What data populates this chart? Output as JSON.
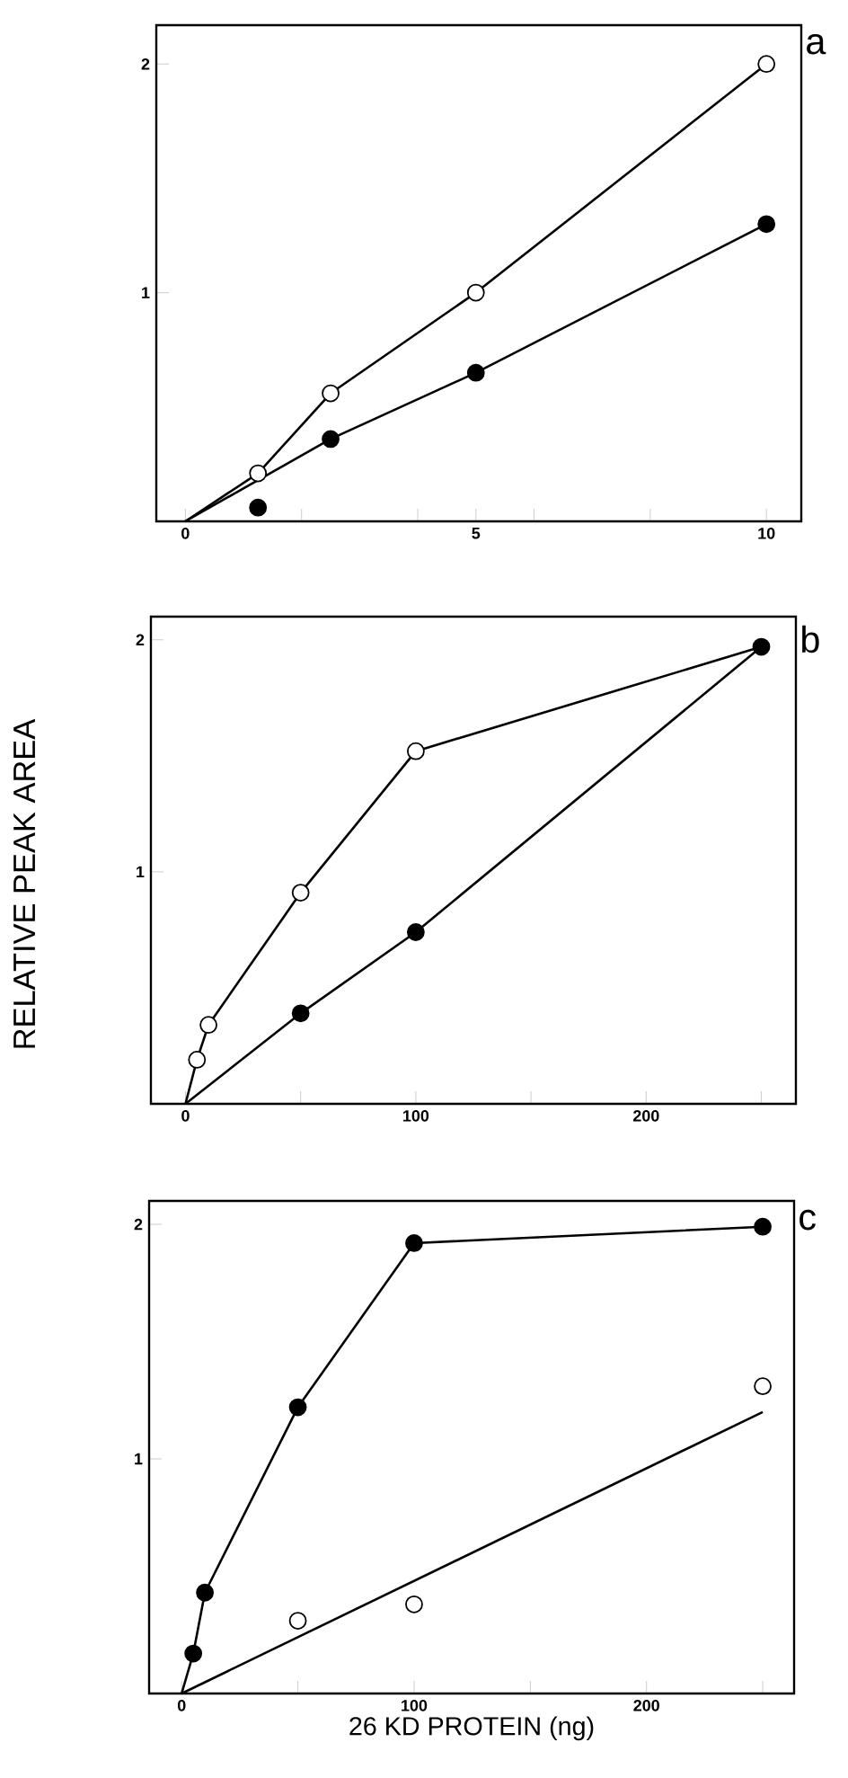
{
  "chart_data": [
    {
      "type": "line",
      "annotations": [
        "a"
      ],
      "xlim": [
        -0.5,
        10.6
      ],
      "ylim": [
        0,
        2.17
      ],
      "xticks": [
        0,
        {
          "value": 2,
          "label": null
        },
        {
          "value": 4,
          "label": null
        },
        5,
        {
          "value": 6,
          "label": null
        },
        {
          "value": 8,
          "label": null
        },
        10
      ],
      "yticks": [
        1,
        2
      ],
      "series": [
        {
          "marker": "none",
          "color": "#000000",
          "x": [
            0,
            1.25,
            2.5,
            5,
            10
          ],
          "values": [
            0,
            0.21,
            0.56,
            1.0,
            2.0
          ]
        },
        {
          "marker": "none",
          "color": "#000000",
          "x": [
            0,
            2.5,
            5,
            10
          ],
          "values": [
            0,
            0.36,
            0.65,
            1.3
          ]
        },
        {
          "type": "scatter",
          "marker": "circle",
          "color": "#ffffff",
          "x": [
            1.25,
            2.5,
            5,
            10
          ],
          "values": [
            0.21,
            0.56,
            1.0,
            2.0
          ]
        },
        {
          "type": "scatter",
          "marker": "circle",
          "color": "#000000",
          "x": [
            1.25,
            2.5,
            5,
            10
          ],
          "values": [
            0.06,
            0.36,
            0.65,
            1.3
          ]
        }
      ]
    },
    {
      "type": "line",
      "annotations": [
        "b"
      ],
      "ylabel": "RELATIVE PEAK AREA",
      "xlim": [
        -15,
        265
      ],
      "ylim": [
        0,
        2.1
      ],
      "xticks": [
        0,
        {
          "value": 50,
          "label": null
        },
        100,
        {
          "value": 150,
          "label": null
        },
        200,
        {
          "value": 250,
          "label": null
        }
      ],
      "yticks": [
        1,
        2
      ],
      "series": [
        {
          "marker": "none",
          "color": "#000000",
          "x": [
            0,
            5,
            10,
            50,
            100,
            250
          ],
          "values": [
            0,
            0.19,
            0.34,
            0.91,
            1.52,
            1.97
          ]
        },
        {
          "marker": "none",
          "color": "#000000",
          "x": [
            0,
            50,
            100,
            250
          ],
          "values": [
            0,
            0.39,
            0.74,
            1.97
          ]
        },
        {
          "type": "scatter",
          "marker": "circle",
          "color": "#000000",
          "x": [
            50,
            100,
            250
          ],
          "values": [
            0.39,
            0.74,
            1.97
          ]
        },
        {
          "type": "scatter",
          "marker": "circle",
          "color": "#ffffff",
          "x": [
            5,
            10,
            50,
            100
          ],
          "values": [
            0.19,
            0.34,
            0.91,
            1.52
          ]
        }
      ]
    },
    {
      "type": "line",
      "annotations": [
        "c"
      ],
      "xlabel": "26 KD PROTEIN (ng)",
      "xlim": [
        -14,
        263.5
      ],
      "ylim": [
        0,
        2.1
      ],
      "xticks": [
        0,
        {
          "value": 50,
          "label": null
        },
        100,
        {
          "value": 150,
          "label": null
        },
        200,
        {
          "value": 250,
          "label": null
        }
      ],
      "yticks": [
        1,
        2
      ],
      "series": [
        {
          "marker": "none",
          "color": "#000000",
          "x": [
            0,
            5,
            10,
            50,
            100,
            250
          ],
          "values": [
            0,
            0.17,
            0.43,
            1.22,
            1.92,
            1.99
          ]
        },
        {
          "marker": "none",
          "color": "#000000",
          "x": [
            0,
            250
          ],
          "values": [
            0,
            1.2
          ]
        },
        {
          "type": "scatter",
          "marker": "circle",
          "color": "#000000",
          "x": [
            5,
            10,
            50,
            100,
            250
          ],
          "values": [
            0.17,
            0.43,
            1.22,
            1.92,
            1.99
          ]
        },
        {
          "type": "scatter",
          "marker": "circle",
          "color": "#ffffff",
          "x": [
            50,
            100,
            250
          ],
          "values": [
            0.31,
            0.38,
            1.31
          ]
        }
      ]
    }
  ]
}
